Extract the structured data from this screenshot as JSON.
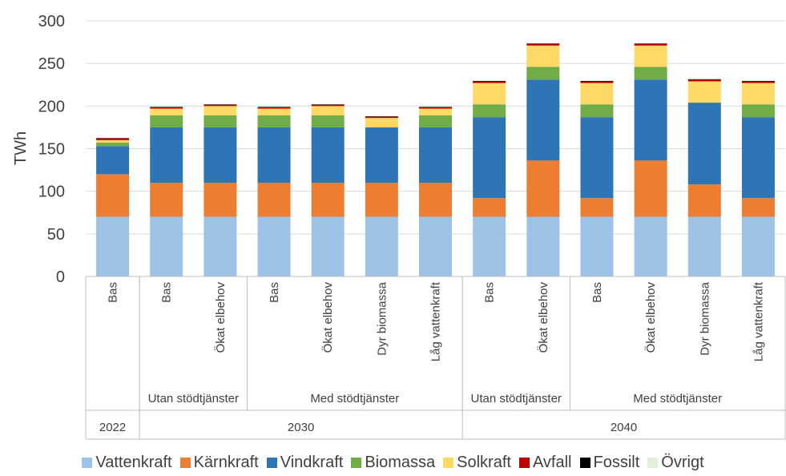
{
  "chart_data": {
    "type": "bar",
    "stacked": true,
    "ylabel": "TWh",
    "ylim": [
      0,
      300
    ],
    "yticks": [
      0,
      50,
      100,
      150,
      200,
      250,
      300
    ],
    "grid": true,
    "legend_position": "bottom",
    "categories": [
      "Bas",
      "Bas",
      "Ökat elbehov",
      "Bas",
      "Ökat elbehov",
      "Dyr biomassa",
      "Låg vattenkraft",
      "Bas",
      "Ökat elbehov",
      "Bas",
      "Ökat elbehov",
      "Dyr biomassa",
      "Låg vattenkraft"
    ],
    "group_level2": [
      {
        "label": "",
        "count": 1
      },
      {
        "label": "Utan stödtjänster",
        "count": 2
      },
      {
        "label": "Med stödtjänster",
        "count": 4
      },
      {
        "label": "Utan stödtjänster",
        "count": 2
      },
      {
        "label": "Med stödtjänster",
        "count": 4
      }
    ],
    "group_level1": [
      {
        "label": "2022",
        "count": 1
      },
      {
        "label": "2030",
        "count": 6
      },
      {
        "label": "2040",
        "count": 6
      }
    ],
    "series": [
      {
        "name": "Vattenkraft",
        "color": "#9DC3E6",
        "values": [
          70,
          70,
          70,
          70,
          70,
          70,
          70,
          70,
          70,
          70,
          70,
          70,
          70
        ]
      },
      {
        "name": "Kärnkraft",
        "color": "#ED7D31",
        "values": [
          50,
          40,
          40,
          40,
          40,
          40,
          40,
          22,
          66,
          22,
          66,
          38,
          22
        ]
      },
      {
        "name": "Vindkraft",
        "color": "#2E75B6",
        "values": [
          33,
          65,
          65,
          65,
          65,
          65,
          65,
          95,
          95,
          95,
          95,
          96,
          95
        ]
      },
      {
        "name": "Biomassa",
        "color": "#70AD47",
        "values": [
          4,
          14,
          14,
          14,
          14,
          0,
          14,
          15,
          15,
          15,
          15,
          0,
          15
        ]
      },
      {
        "name": "Solkraft",
        "color": "#FFD966",
        "values": [
          3,
          8,
          11,
          8,
          11,
          11,
          8,
          25,
          25,
          25,
          25,
          25,
          25
        ]
      },
      {
        "name": "Avfall",
        "color": "#C00000",
        "values": [
          2,
          1.5,
          1.5,
          1.5,
          1.5,
          1.5,
          1.5,
          2,
          2,
          2,
          2,
          2,
          2
        ]
      },
      {
        "name": "Fossilt",
        "color": "#000000",
        "values": [
          0.5,
          0.5,
          0.5,
          0.5,
          0.5,
          0.5,
          0.5,
          0.5,
          0.5,
          0.5,
          0.5,
          0.5,
          0.5
        ]
      },
      {
        "name": "Övrigt",
        "color": "#E2F0D9",
        "values": [
          0,
          0,
          0,
          0,
          0,
          0,
          0,
          0,
          0,
          0,
          0,
          0,
          0
        ]
      }
    ]
  }
}
